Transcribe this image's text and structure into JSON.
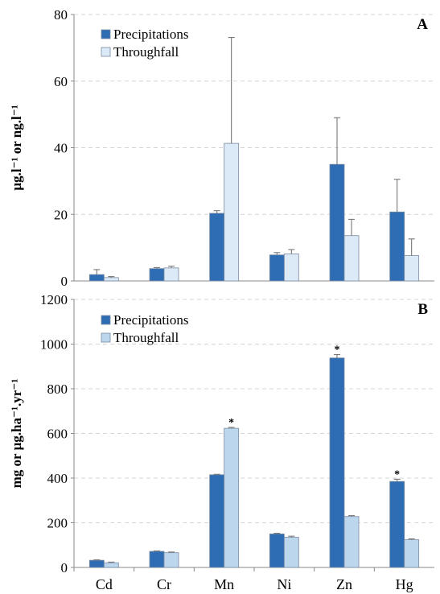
{
  "chart_data": [
    {
      "panel_label": "A",
      "type": "bar",
      "ylabel": "µg.l⁻¹ or ng.l⁻¹",
      "ylim": [
        0,
        80
      ],
      "yticks": [
        0,
        20,
        40,
        60,
        80
      ],
      "grid": true,
      "legend": "top-left",
      "categories": [
        "Cd",
        "Cr",
        "Mn",
        "Ni",
        "Zn",
        "Hg"
      ],
      "series": [
        {
          "name": "Precipitations",
          "color": "#2e6db4",
          "values": [
            1.9,
            3.7,
            20.3,
            7.8,
            35.0,
            20.7
          ],
          "error": [
            1.5,
            0.3,
            0.8,
            0.7,
            14.0,
            9.8
          ]
        },
        {
          "name": "Throughfall",
          "color": "#dce9f6",
          "values": [
            1.0,
            3.9,
            41.3,
            8.1,
            13.6,
            7.6
          ],
          "error": [
            0.3,
            0.5,
            31.8,
            1.3,
            4.9,
            5.0
          ]
        }
      ]
    },
    {
      "panel_label": "B",
      "type": "bar",
      "ylabel": "mg or µg.ha⁻¹.yr⁻¹",
      "ylim": [
        0,
        1200
      ],
      "yticks": [
        0,
        200,
        400,
        600,
        800,
        1000,
        1200
      ],
      "grid": true,
      "legend": "top-left",
      "categories": [
        "Cd",
        "Cr",
        "Mn",
        "Ni",
        "Zn",
        "Hg"
      ],
      "series": [
        {
          "name": "Precipitations",
          "color": "#2e6db4",
          "values": [
            32,
            72,
            415,
            150,
            938,
            385
          ],
          "error": [
            2,
            2,
            2,
            3,
            15,
            10
          ],
          "significant": [
            false,
            false,
            false,
            false,
            true,
            true
          ]
        },
        {
          "name": "Throughfall",
          "color": "#bcd6ee",
          "values": [
            21,
            66,
            623,
            135,
            228,
            124
          ],
          "error": [
            3,
            3,
            4,
            5,
            4,
            4
          ],
          "significant": [
            false,
            false,
            true,
            false,
            false,
            false
          ]
        }
      ],
      "significance_marker": "*"
    }
  ]
}
